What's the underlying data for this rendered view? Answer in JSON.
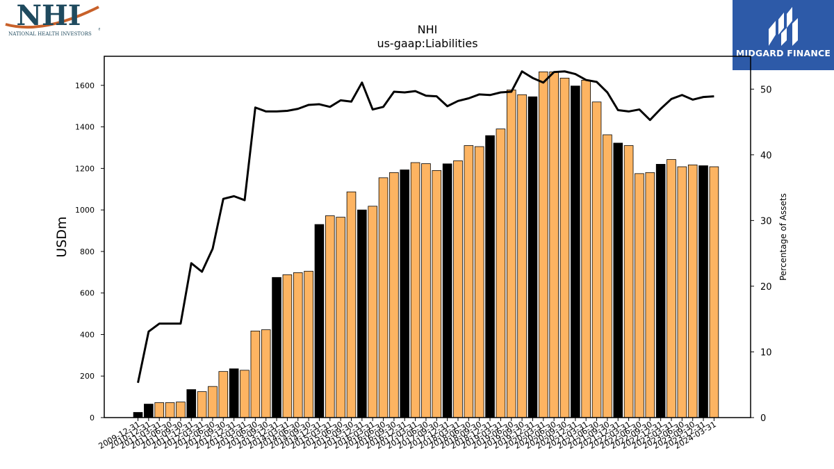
{
  "logos": {
    "left": {
      "letters": "NHI",
      "tagline": "NATIONAL HEALTH INVESTORS",
      "mark": "®"
    },
    "right": {
      "name": "MIDGARD FINANCE",
      "icon": "midgard-m-icon",
      "bg_color": "#2d5aa8"
    }
  },
  "chart_data": {
    "type": "bar",
    "title": "NHI",
    "subtitle": "us-gaap:Liabilities",
    "ylabel": "USDm",
    "y2label": "Percentage of Assets",
    "ylim": [
      0,
      1740
    ],
    "y2lim": [
      0,
      55
    ],
    "yticks": [
      0,
      200,
      400,
      600,
      800,
      1000,
      1200,
      1400,
      1600
    ],
    "y2ticks": [
      0,
      10,
      20,
      30,
      40,
      50
    ],
    "grid": false,
    "colors": {
      "bar_year_end": "#000000",
      "bar_quarter": "#fdb462",
      "bar_edge": "#000000",
      "line": "#000000"
    },
    "tick_labels": [
      "2009-12-31",
      "2010-12-31",
      "2011-03-31",
      "2011-06-30",
      "2011-09-30",
      "2011-12-31",
      "2012-03-31",
      "2012-06-30",
      "2012-09-30",
      "2012-12-31",
      "2013-03-31",
      "2013-06-30",
      "2013-09-30",
      "2013-12-31",
      "2014-03-31",
      "2014-06-30",
      "2014-09-30",
      "2014-12-31",
      "2015-03-31",
      "2015-06-30",
      "2015-09-30",
      "2015-12-31",
      "2016-03-31",
      "2016-06-30",
      "2016-09-30",
      "2016-12-31",
      "2017-03-31",
      "2017-06-30",
      "2017-09-30",
      "2017-12-31",
      "2018-03-31",
      "2018-06-30",
      "2018-09-30",
      "2018-12-31",
      "2019-03-31",
      "2019-06-30",
      "2019-09-30",
      "2019-12-31",
      "2020-03-31",
      "2020-06-30",
      "2020-09-30",
      "2020-12-31",
      "2021-03-31",
      "2021-06-30",
      "2021-09-30",
      "2021-12-31",
      "2022-03-31",
      "2022-06-30",
      "2022-09-30",
      "2022-12-31",
      "2023-03-31",
      "2023-06-30",
      "2023-09-30",
      "2023-12-31",
      "2024-03-31"
    ],
    "categories": [
      "2009-12-31",
      "2010-12-31",
      "2011-03-31",
      "2011-06-30",
      "2011-09-30",
      "2011-12-31",
      "2012-03-31",
      "2012-06-30",
      "2012-09-30",
      "2012-12-31",
      "2013-03-31",
      "2013-06-30",
      "2013-09-30",
      "2013-12-31",
      "2014-03-31",
      "2014-06-30",
      "2014-09-30",
      "2014-12-31",
      "2015-03-31",
      "2015-06-30",
      "2015-09-30",
      "2015-12-31",
      "2016-03-31",
      "2016-06-30",
      "2016-09-30",
      "2016-12-31",
      "2017-03-31",
      "2017-06-30",
      "2017-09-30",
      "2017-12-31",
      "2018-03-31",
      "2018-06-30",
      "2018-09-30",
      "2018-12-31",
      "2019-03-31",
      "2019-06-30",
      "2019-09-30",
      "2019-12-31",
      "2020-03-31",
      "2020-06-30",
      "2020-09-30",
      "2020-12-31",
      "2021-03-31",
      "2021-06-30",
      "2021-09-30",
      "2021-12-31",
      "2022-03-31",
      "2022-06-30",
      "2022-09-30",
      "2022-12-31",
      "2023-03-31",
      "2023-06-30",
      "2023-09-30",
      "2023-12-31",
      "2024-03-31"
    ],
    "year_end": [
      true,
      true,
      false,
      false,
      false,
      true,
      false,
      false,
      false,
      true,
      false,
      false,
      false,
      true,
      false,
      false,
      false,
      true,
      false,
      false,
      false,
      true,
      false,
      false,
      false,
      true,
      false,
      false,
      false,
      true,
      false,
      false,
      false,
      true,
      false,
      false,
      false,
      true,
      false,
      false,
      false,
      true,
      false,
      false,
      false,
      true,
      false,
      false,
      false,
      true,
      false,
      false,
      false,
      true,
      false
    ],
    "series": [
      {
        "axis": "left",
        "kind": "bar",
        "values": [
          25,
          65,
          72,
          72,
          75,
          135,
          125,
          150,
          222,
          235,
          228,
          417,
          423,
          675,
          688,
          698,
          705,
          930,
          972,
          965,
          1087,
          1000,
          1018,
          1155,
          1180,
          1193,
          1228,
          1223,
          1190,
          1222,
          1237,
          1310,
          1305,
          1358,
          1390,
          1578,
          1555,
          1545,
          1665,
          1665,
          1635,
          1597,
          1625,
          1520,
          1362,
          1322,
          1310,
          1175,
          1180,
          1220,
          1243,
          1208,
          1217,
          1213,
          1208
        ]
      },
      {
        "axis": "right",
        "kind": "line",
        "values": [
          5.3,
          13.1,
          14.3,
          14.3,
          14.3,
          23.5,
          22.2,
          25.7,
          33.3,
          33.7,
          33.1,
          47.2,
          46.6,
          46.6,
          46.7,
          47.0,
          47.6,
          47.7,
          47.3,
          48.3,
          48.1,
          51.0,
          46.9,
          47.3,
          49.6,
          49.5,
          49.7,
          49.0,
          48.9,
          47.4,
          48.2,
          48.6,
          49.2,
          49.1,
          49.5,
          49.6,
          52.7,
          51.7,
          51.0,
          52.6,
          52.7,
          52.3,
          51.4,
          51.1,
          49.5,
          46.8,
          46.6,
          46.9,
          45.3,
          47.0,
          48.5,
          49.1,
          48.4,
          48.8,
          48.9
        ]
      }
    ]
  }
}
